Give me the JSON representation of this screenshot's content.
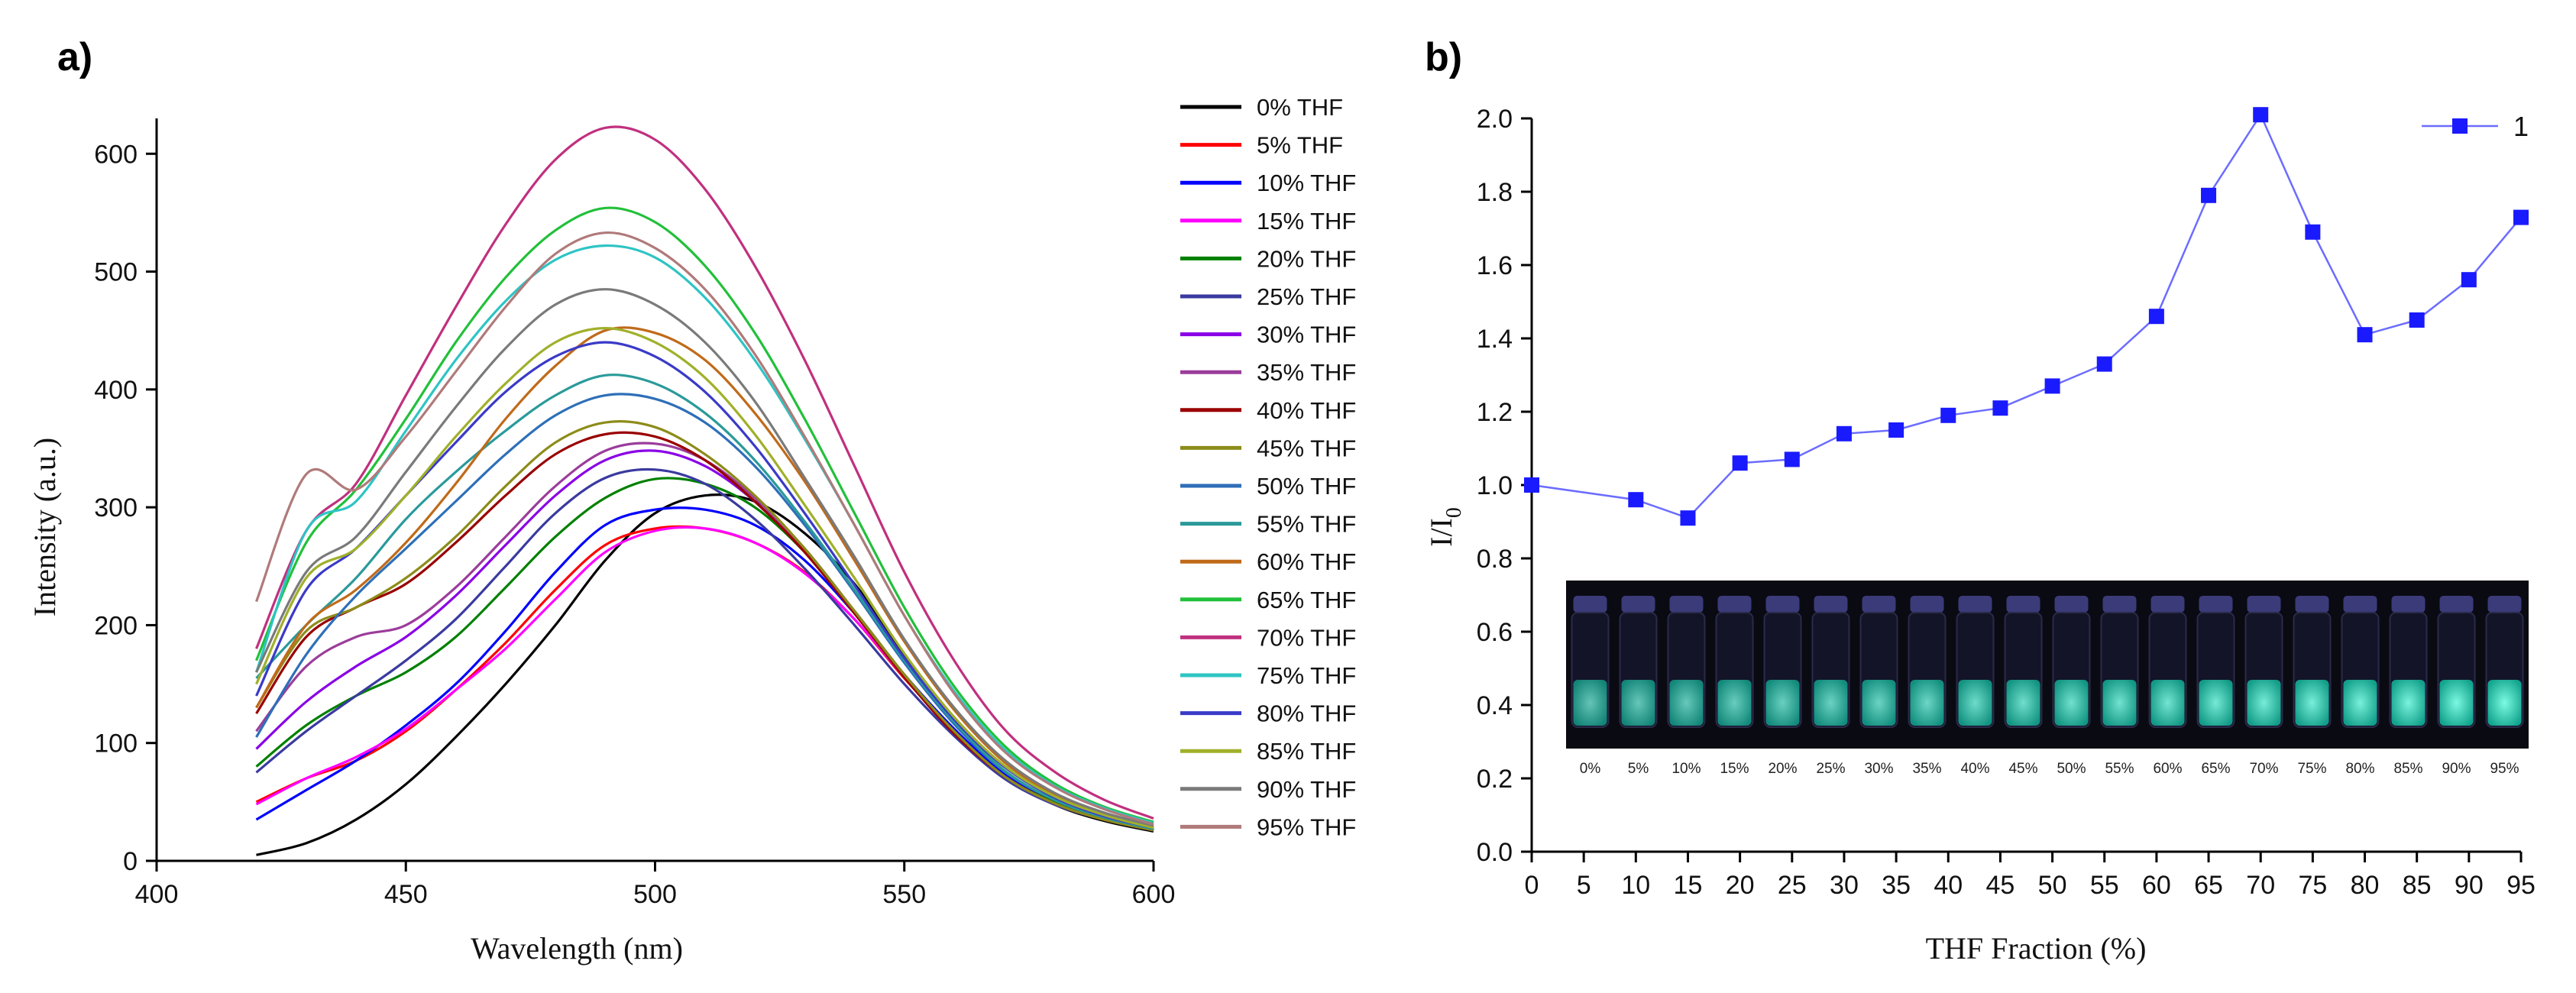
{
  "panels": {
    "a": "a)",
    "b": "b)"
  },
  "chart_data": [
    {
      "type": "line",
      "xlabel": "Wavelength (nm)",
      "ylabel": "Intensity (a.u.)",
      "xlim": [
        400,
        600
      ],
      "ylim": [
        0,
        630
      ],
      "xticks": [
        "400",
        "450",
        "500",
        "550",
        "600"
      ],
      "yticks": [
        "0",
        "100",
        "200",
        "300",
        "400",
        "500",
        "600"
      ],
      "legend_position": "right",
      "series": [
        {
          "name": "0% THF",
          "color": "#000000",
          "x": [
            420,
            430,
            440,
            450,
            460,
            470,
            480,
            490,
            500,
            510,
            520,
            530,
            540,
            550,
            560,
            570,
            580,
            590,
            600
          ],
          "y": [
            5,
            15,
            35,
            65,
            105,
            150,
            200,
            255,
            295,
            310,
            305,
            278,
            235,
            175,
            118,
            72,
            48,
            34,
            25
          ]
        },
        {
          "name": "5% THF",
          "color": "#ff0000",
          "x": [
            420,
            430,
            440,
            450,
            460,
            470,
            480,
            490,
            500,
            510,
            520,
            530,
            540,
            550,
            560,
            570,
            580,
            590,
            600
          ],
          "y": [
            50,
            70,
            85,
            110,
            145,
            185,
            230,
            268,
            282,
            282,
            270,
            245,
            205,
            155,
            110,
            72,
            50,
            36,
            27
          ]
        },
        {
          "name": "10% THF",
          "color": "#0000ff",
          "x": [
            420,
            430,
            440,
            450,
            460,
            470,
            480,
            490,
            500,
            510,
            520,
            530,
            540,
            550,
            560,
            570,
            580,
            590,
            600
          ],
          "y": [
            35,
            60,
            85,
            115,
            150,
            195,
            245,
            285,
            298,
            298,
            285,
            255,
            210,
            158,
            112,
            74,
            50,
            36,
            27
          ]
        },
        {
          "name": "15% THF",
          "color": "#ff00ff",
          "x": [
            420,
            430,
            440,
            450,
            460,
            470,
            480,
            490,
            500,
            510,
            520,
            530,
            540,
            550,
            560,
            570,
            580,
            590,
            600
          ],
          "y": [
            48,
            70,
            88,
            112,
            145,
            180,
            222,
            262,
            280,
            282,
            270,
            244,
            205,
            156,
            110,
            72,
            50,
            36,
            27
          ]
        },
        {
          "name": "20% THF",
          "color": "#008000",
          "x": [
            420,
            430,
            440,
            450,
            460,
            470,
            480,
            490,
            500,
            510,
            520,
            530,
            540,
            550,
            560,
            570,
            580,
            590,
            600
          ],
          "y": [
            80,
            115,
            140,
            160,
            190,
            232,
            275,
            308,
            324,
            320,
            300,
            262,
            212,
            158,
            110,
            72,
            50,
            36,
            27
          ]
        },
        {
          "name": "25% THF",
          "color": "#3a3aa0",
          "x": [
            420,
            430,
            440,
            450,
            460,
            470,
            480,
            490,
            500,
            510,
            520,
            530,
            540,
            550,
            560,
            570,
            580,
            590,
            600
          ],
          "y": [
            75,
            110,
            140,
            170,
            205,
            250,
            295,
            325,
            332,
            320,
            290,
            248,
            200,
            150,
            106,
            70,
            48,
            35,
            26
          ]
        },
        {
          "name": "30% THF",
          "color": "#8a00e6",
          "x": [
            420,
            430,
            440,
            450,
            460,
            470,
            480,
            490,
            500,
            510,
            520,
            530,
            540,
            550,
            560,
            570,
            580,
            590,
            600
          ],
          "y": [
            95,
            135,
            165,
            190,
            225,
            268,
            310,
            340,
            348,
            335,
            305,
            262,
            210,
            156,
            108,
            72,
            49,
            35,
            26
          ]
        },
        {
          "name": "35% THF",
          "color": "#9b3d9b",
          "x": [
            420,
            430,
            440,
            450,
            460,
            470,
            480,
            490,
            500,
            510,
            520,
            530,
            540,
            550,
            560,
            570,
            580,
            590,
            600
          ],
          "y": [
            110,
            165,
            190,
            200,
            232,
            275,
            318,
            348,
            354,
            340,
            308,
            265,
            212,
            158,
            110,
            72,
            49,
            35,
            26
          ]
        },
        {
          "name": "40% THF",
          "color": "#990000",
          "x": [
            420,
            430,
            440,
            450,
            460,
            470,
            480,
            490,
            500,
            510,
            520,
            530,
            540,
            550,
            560,
            570,
            580,
            590,
            600
          ],
          "y": [
            125,
            190,
            215,
            235,
            270,
            310,
            345,
            362,
            360,
            340,
            305,
            262,
            210,
            156,
            108,
            72,
            49,
            35,
            26
          ]
        },
        {
          "name": "45% THF",
          "color": "#8c8c1a",
          "x": [
            420,
            430,
            440,
            450,
            460,
            470,
            480,
            490,
            500,
            510,
            520,
            530,
            540,
            550,
            560,
            570,
            580,
            590,
            600
          ],
          "y": [
            130,
            195,
            215,
            240,
            275,
            318,
            355,
            372,
            368,
            345,
            310,
            265,
            212,
            158,
            110,
            72,
            49,
            35,
            26
          ]
        },
        {
          "name": "50% THF",
          "color": "#2e6fb8",
          "x": [
            420,
            430,
            440,
            450,
            460,
            470,
            480,
            490,
            500,
            510,
            520,
            530,
            540,
            550,
            560,
            570,
            580,
            590,
            600
          ],
          "y": [
            105,
            175,
            225,
            265,
            305,
            345,
            378,
            395,
            392,
            372,
            335,
            285,
            228,
            168,
            116,
            76,
            52,
            37,
            27
          ]
        },
        {
          "name": "55% THF",
          "color": "#2a9a9a",
          "x": [
            420,
            430,
            440,
            450,
            460,
            470,
            480,
            490,
            500,
            510,
            520,
            530,
            540,
            550,
            560,
            570,
            580,
            590,
            600
          ],
          "y": [
            155,
            200,
            240,
            290,
            330,
            365,
            395,
            412,
            405,
            380,
            340,
            288,
            230,
            170,
            118,
            77,
            52,
            37,
            27
          ]
        },
        {
          "name": "60% THF",
          "color": "#c06a1a",
          "x": [
            420,
            430,
            440,
            450,
            460,
            470,
            480,
            490,
            500,
            510,
            520,
            530,
            540,
            550,
            560,
            570,
            580,
            590,
            600
          ],
          "y": [
            130,
            200,
            230,
            270,
            320,
            375,
            420,
            450,
            448,
            425,
            380,
            322,
            255,
            186,
            128,
            84,
            57,
            40,
            29
          ]
        },
        {
          "name": "65% THF",
          "color": "#22c03a",
          "x": [
            420,
            430,
            440,
            450,
            460,
            470,
            480,
            490,
            500,
            510,
            520,
            530,
            540,
            550,
            560,
            570,
            580,
            590,
            600
          ],
          "y": [
            170,
            270,
            315,
            375,
            440,
            495,
            535,
            554,
            542,
            505,
            448,
            375,
            295,
            215,
            148,
            98,
            66,
            46,
            33
          ]
        },
        {
          "name": "70% THF",
          "color": "#c0307f",
          "x": [
            420,
            430,
            440,
            450,
            460,
            470,
            480,
            490,
            500,
            510,
            520,
            530,
            540,
            550,
            560,
            570,
            580,
            590,
            600
          ],
          "y": [
            180,
            280,
            320,
            395,
            470,
            540,
            595,
            622,
            612,
            570,
            505,
            425,
            335,
            245,
            170,
            112,
            76,
            52,
            36
          ]
        },
        {
          "name": "75% THF",
          "color": "#2ec4c4",
          "x": [
            420,
            430,
            440,
            450,
            460,
            470,
            480,
            490,
            500,
            510,
            520,
            530,
            540,
            550,
            560,
            570,
            580,
            590,
            600
          ],
          "y": [
            160,
            280,
            305,
            365,
            425,
            475,
            510,
            522,
            512,
            478,
            425,
            358,
            285,
            208,
            144,
            95,
            64,
            45,
            32
          ]
        },
        {
          "name": "80% THF",
          "color": "#3a3ac8",
          "x": [
            420,
            430,
            440,
            450,
            460,
            470,
            480,
            490,
            500,
            510,
            520,
            530,
            540,
            550,
            560,
            570,
            580,
            590,
            600
          ],
          "y": [
            140,
            230,
            265,
            310,
            355,
            398,
            428,
            440,
            428,
            398,
            352,
            295,
            234,
            172,
            120,
            80,
            54,
            38,
            28
          ]
        },
        {
          "name": "85% THF",
          "color": "#a0b02a",
          "x": [
            420,
            430,
            440,
            450,
            460,
            470,
            480,
            490,
            500,
            510,
            520,
            530,
            540,
            550,
            560,
            570,
            580,
            590,
            600
          ],
          "y": [
            150,
            240,
            265,
            310,
            360,
            405,
            440,
            452,
            440,
            410,
            362,
            302,
            240,
            176,
            122,
            81,
            55,
            39,
            28
          ]
        },
        {
          "name": "90% THF",
          "color": "#7a7a7a",
          "x": [
            420,
            430,
            440,
            450,
            460,
            470,
            480,
            490,
            500,
            510,
            520,
            530,
            540,
            550,
            560,
            570,
            580,
            590,
            600
          ],
          "y": [
            160,
            245,
            275,
            330,
            385,
            435,
            472,
            485,
            472,
            440,
            390,
            325,
            258,
            188,
            130,
            86,
            58,
            41,
            30
          ]
        },
        {
          "name": "95% THF",
          "color": "#b07a7a",
          "x": [
            420,
            430,
            440,
            450,
            460,
            470,
            480,
            490,
            500,
            510,
            520,
            530,
            540,
            550,
            560,
            570,
            580,
            590,
            600
          ],
          "y": [
            220,
            328,
            315,
            360,
            415,
            470,
            515,
            533,
            520,
            485,
            430,
            360,
            285,
            208,
            142,
            93,
            63,
            44,
            31
          ]
        }
      ]
    },
    {
      "type": "scatter",
      "xlabel": "THF Fraction (%)",
      "ylabel": "I/I",
      "ylabel_subscript": "0",
      "xlim": [
        0,
        95
      ],
      "ylim": [
        0,
        2.0
      ],
      "xticks": [
        "0",
        "5",
        "10",
        "15",
        "20",
        "25",
        "30",
        "35",
        "40",
        "45",
        "50",
        "55",
        "60",
        "65",
        "70",
        "75",
        "80",
        "85",
        "90",
        "95"
      ],
      "yticks": [
        "0.0",
        "0.2",
        "0.4",
        "0.6",
        "0.8",
        "1.0",
        "1.2",
        "1.4",
        "1.6",
        "1.8",
        "2.0"
      ],
      "legend_position": "top-right",
      "series": [
        {
          "name": "1",
          "color": "#1a1aff",
          "x": [
            0,
            10,
            15,
            20,
            25,
            30,
            35,
            40,
            45,
            50,
            55,
            60,
            65,
            70,
            75,
            80,
            85,
            90,
            95
          ],
          "y": [
            1.0,
            0.96,
            0.91,
            1.06,
            1.07,
            1.14,
            1.15,
            1.19,
            1.21,
            1.27,
            1.33,
            1.46,
            1.79,
            2.01,
            1.69,
            1.41,
            1.45,
            1.56,
            1.73
          ]
        }
      ],
      "inset_photo": {
        "labels": [
          "0%",
          "5%",
          "10%",
          "15%",
          "20%",
          "25%",
          "30%",
          "35%",
          "40%",
          "45%",
          "50%",
          "55%",
          "60%",
          "65%",
          "70%",
          "75%",
          "80%",
          "85%",
          "90%",
          "95%"
        ]
      }
    }
  ]
}
